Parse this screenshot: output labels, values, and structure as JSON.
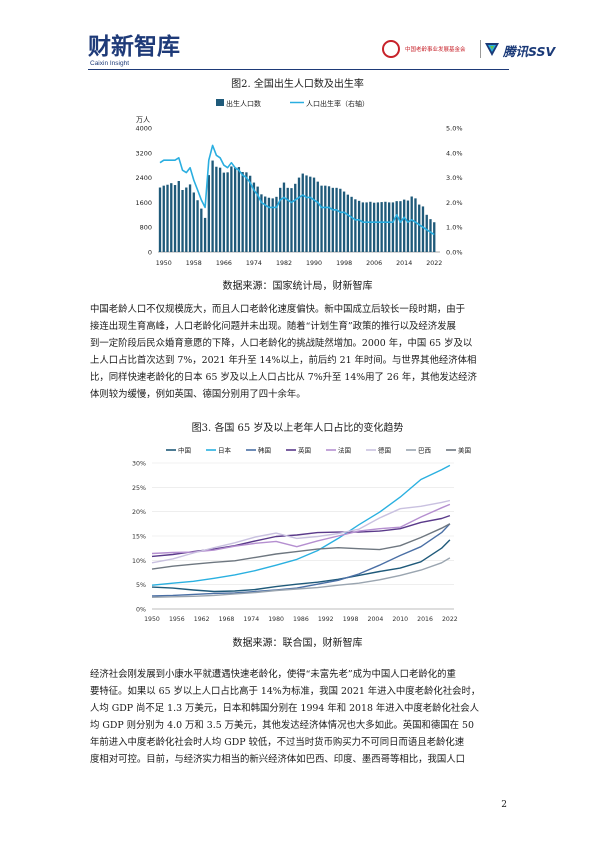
{
  "header": {
    "logo_main": "财新智库",
    "logo_sub": "Caixin Insight",
    "partner_seal_text": "中国老龄事业发展基金会",
    "partner_logo": "腾讯SSV"
  },
  "figure2": {
    "caption": "图2. 全国出生人口数及出生率",
    "source": "数据来源：国家统计局，财新智库"
  },
  "figure3": {
    "caption": "图3. 各国 65 岁及以上老年人口占比的变化趋势",
    "source": "数据来源：联合国，财新智库"
  },
  "paragraph1": {
    "lines": [
      "中国老龄人口不仅规模庞大，而且人口老龄化速度偏快。新中国成立后较长一段时期，由于",
      "接连出现生育高峰，人口老龄化问题并未出现。随着“计划生育”政策的推行以及经济发展",
      "到一定阶段后民众婚育意愿的下降，人口老龄化的挑战陡然增加。2000 年，中国 65 岁及以",
      "上人口占比首次达到 7%，2021 年升至 14%以上，前后约 21 年时间。与世界其他经济体相",
      "比，同样快速老龄化的日本 65 岁及以上人口占比从 7%升至 14%用了 26 年，其他发达经济",
      "体则较为缓慢，例如英国、德国分别用了四十余年。"
    ]
  },
  "paragraph2": {
    "lines": [
      "经济社会刚发展到小康水平就遭遇快速老龄化，使得“未富先老”成为中国人口老龄化的重",
      "要特征。如果以 65 岁以上人口占比高于 14%为标准，我国 2021 年进入中度老龄化社会时，",
      "人均 GDP 尚不足 1.3 万美元，日本和韩国分别在 1994 年和 2018 年进入中度老龄化社会人",
      "均 GDP 则分别为 4.0 万和 3.5 万美元，其他发达经济体情况也大多如此。英国和德国在 50",
      "年前进入中度老龄化社会时人均 GDP 较低，不过当时货币购买力不可同日而语且老龄化速",
      "度相对可控。目前，与经济实力相当的新兴经济体如巴西、印度、墨西哥等相比，我国人口"
    ]
  },
  "page_number": "2",
  "colors": {
    "bar": "#1f5a7a",
    "rate_line": "#2aaee0",
    "brand": "#1e3a78"
  },
  "chart_data": [
    {
      "type": "bar",
      "title": "图2. 全国出生人口数及出生率",
      "ylabel": "万人",
      "ylim": [
        0,
        4000
      ],
      "y2lim": [
        0,
        5.0
      ],
      "yticks": [
        "0",
        "800",
        "1600",
        "2400",
        "3200",
        "4000"
      ],
      "y2ticks": [
        "0.0%",
        "1.0%",
        "2.0%",
        "3.0%",
        "4.0%",
        "5.0%"
      ],
      "xticks": [
        "1950",
        "1958",
        "1966",
        "1974",
        "1982",
        "1990",
        "1998",
        "2006",
        "2014",
        "2022"
      ],
      "legend": [
        "出生人口数",
        "人口出生率（右轴）"
      ],
      "x": [
        1949,
        1950,
        1951,
        1952,
        1953,
        1954,
        1955,
        1956,
        1957,
        1958,
        1959,
        1960,
        1961,
        1962,
        1963,
        1964,
        1965,
        1966,
        1967,
        1968,
        1969,
        1970,
        1971,
        1972,
        1973,
        1974,
        1975,
        1976,
        1977,
        1978,
        1979,
        1980,
        1981,
        1982,
        1983,
        1984,
        1985,
        1986,
        1987,
        1988,
        1989,
        1990,
        1991,
        1992,
        1993,
        1994,
        1995,
        1996,
        1997,
        1998,
        1999,
        2000,
        2001,
        2002,
        2003,
        2004,
        2005,
        2006,
        2007,
        2008,
        2009,
        2010,
        2011,
        2012,
        2013,
        2014,
        2015,
        2016,
        2017,
        2018,
        2019,
        2020,
        2021,
        2022
      ],
      "series": [
        {
          "name": "出生人口数",
          "axis": "left",
          "values": [
            2080,
            2140,
            2170,
            2220,
            2160,
            2290,
            2000,
            2080,
            2180,
            1920,
            1670,
            1400,
            1100,
            2480,
            2950,
            2750,
            2720,
            2560,
            2570,
            2760,
            2720,
            2740,
            2580,
            2570,
            2460,
            2240,
            2110,
            1860,
            1790,
            1750,
            1730,
            1780,
            2070,
            2240,
            2070,
            2060,
            2200,
            2400,
            2530,
            2470,
            2430,
            2400,
            2270,
            2140,
            2140,
            2120,
            2070,
            2070,
            2040,
            1950,
            1850,
            1780,
            1700,
            1650,
            1600,
            1600,
            1620,
            1590,
            1600,
            1610,
            1620,
            1600,
            1600,
            1640,
            1640,
            1690,
            1660,
            1790,
            1730,
            1530,
            1470,
            1200,
            1060,
            960
          ]
        },
        {
          "name": "人口出生率（右轴）",
          "axis": "right",
          "values": [
            3.6,
            3.7,
            3.7,
            3.7,
            3.7,
            3.8,
            3.3,
            3.2,
            3.4,
            2.9,
            2.5,
            2.1,
            1.8,
            3.7,
            4.3,
            3.9,
            3.8,
            3.5,
            3.4,
            3.6,
            3.4,
            3.3,
            3.1,
            3.0,
            2.8,
            2.5,
            2.3,
            2.0,
            1.9,
            1.8,
            1.8,
            1.8,
            2.1,
            2.2,
            2.1,
            2.0,
            2.1,
            2.2,
            2.3,
            2.2,
            2.2,
            2.1,
            2.0,
            1.8,
            1.8,
            1.8,
            1.7,
            1.7,
            1.6,
            1.6,
            1.5,
            1.4,
            1.3,
            1.3,
            1.2,
            1.2,
            1.2,
            1.2,
            1.2,
            1.2,
            1.2,
            1.2,
            1.2,
            1.5,
            1.2,
            1.4,
            1.2,
            1.3,
            1.2,
            1.1,
            1.0,
            0.9,
            0.8,
            0.7
          ]
        }
      ]
    },
    {
      "type": "line",
      "title": "图3. 各国 65 岁及以上老年人口占比的变化趋势",
      "ylim": [
        0,
        30
      ],
      "yticks": [
        "0%",
        "5%",
        "10%",
        "15%",
        "20%",
        "25%",
        "30%"
      ],
      "xticks": [
        "1950",
        "1956",
        "1962",
        "1968",
        "1974",
        "1980",
        "1986",
        "1992",
        "1998",
        "2004",
        "2010",
        "2016",
        "2022"
      ],
      "legend_position": "top",
      "x": [
        1950,
        1955,
        1960,
        1965,
        1970,
        1975,
        1980,
        1985,
        1990,
        1995,
        2000,
        2005,
        2010,
        2015,
        2020,
        2022
      ],
      "series": [
        {
          "name": "中国",
          "color": "#1f5a7a",
          "values": [
            4.5,
            4.3,
            3.9,
            3.6,
            3.7,
            4.0,
            4.6,
            5.1,
            5.5,
            6.1,
            6.9,
            7.7,
            8.4,
            9.7,
            12.5,
            14.2
          ]
        },
        {
          "name": "日本",
          "color": "#2ab0e0",
          "values": [
            4.9,
            5.3,
            5.7,
            6.3,
            7.0,
            7.9,
            9.0,
            10.2,
            12.0,
            14.5,
            17.3,
            19.9,
            23.0,
            26.6,
            28.6,
            29.5
          ]
        },
        {
          "name": "韩国",
          "color": "#4a6fa5",
          "values": [
            2.7,
            2.8,
            3.0,
            3.2,
            3.3,
            3.6,
            3.9,
            4.3,
            5.1,
            5.9,
            7.2,
            9.0,
            11.0,
            12.8,
            15.7,
            17.5
          ]
        },
        {
          "name": "英国",
          "color": "#5a3a8a",
          "values": [
            10.8,
            11.2,
            11.8,
            12.3,
            13.0,
            14.0,
            14.9,
            15.2,
            15.7,
            15.8,
            15.8,
            16.0,
            16.5,
            17.8,
            18.6,
            19.2
          ]
        },
        {
          "name": "法国",
          "color": "#b58fd0",
          "values": [
            11.4,
            11.6,
            11.7,
            12.1,
            12.9,
            13.5,
            13.9,
            12.8,
            14.0,
            15.0,
            16.0,
            16.5,
            16.8,
            18.9,
            20.8,
            21.5
          ]
        },
        {
          "name": "德国",
          "color": "#c9c1e0",
          "values": [
            9.5,
            10.3,
            11.5,
            12.6,
            13.6,
            14.8,
            15.6,
            14.5,
            14.9,
            15.5,
            16.4,
            18.7,
            20.6,
            21.1,
            21.9,
            22.3
          ]
        },
        {
          "name": "巴西",
          "color": "#9aa5b0",
          "values": [
            2.4,
            2.5,
            2.6,
            2.8,
            3.1,
            3.4,
            3.8,
            4.1,
            4.4,
            4.9,
            5.3,
            6.0,
            6.9,
            8.0,
            9.5,
            10.5
          ]
        },
        {
          "name": "美国",
          "color": "#6e7780",
          "values": [
            8.2,
            8.8,
            9.2,
            9.6,
            9.9,
            10.6,
            11.3,
            11.8,
            12.3,
            12.6,
            12.4,
            12.2,
            13.0,
            14.7,
            16.6,
            17.5
          ]
        }
      ]
    }
  ]
}
